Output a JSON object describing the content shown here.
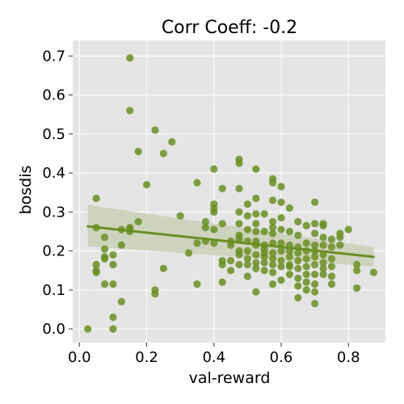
{
  "chart_data": {
    "type": "scatter",
    "title": "Corr Coeff: -0.2",
    "xlabel": "val-reward",
    "ylabel": "bosdis",
    "xlim": [
      -0.02,
      0.91
    ],
    "ylim": [
      -0.035,
      0.74
    ],
    "xticks": [
      0.0,
      0.2,
      0.4,
      0.6,
      0.8
    ],
    "yticks": [
      0.0,
      0.1,
      0.2,
      0.3,
      0.4,
      0.5,
      0.6,
      0.7
    ],
    "xtick_labels": [
      "0.0",
      "0.2",
      "0.4",
      "0.6",
      "0.8"
    ],
    "ytick_labels": [
      "0.0",
      "0.1",
      "0.2",
      "0.3",
      "0.4",
      "0.5",
      "0.6",
      "0.7"
    ],
    "grid": true,
    "colors": {
      "points": "#6b8e23",
      "regression_line": "#6b8e23",
      "confidence_band": "#c5ccb0",
      "plot_background": "#e5e5e5",
      "grid": "#ffffff"
    },
    "regression": {
      "x": [
        0.025,
        0.875
      ],
      "y": [
        0.263,
        0.185
      ],
      "ci_upper": [
        0.318,
        0.21
      ],
      "ci_lower": [
        0.212,
        0.16
      ]
    },
    "points": [
      {
        "x": 0.025,
        "y": 0.0
      },
      {
        "x": 0.05,
        "y": 0.335
      },
      {
        "x": 0.05,
        "y": 0.26
      },
      {
        "x": 0.05,
        "y": 0.165
      },
      {
        "x": 0.05,
        "y": 0.15
      },
      {
        "x": 0.05,
        "y": 0.145
      },
      {
        "x": 0.075,
        "y": 0.235
      },
      {
        "x": 0.075,
        "y": 0.205
      },
      {
        "x": 0.075,
        "y": 0.185
      },
      {
        "x": 0.075,
        "y": 0.18
      },
      {
        "x": 0.075,
        "y": 0.115
      },
      {
        "x": 0.1,
        "y": 0.19
      },
      {
        "x": 0.1,
        "y": 0.165
      },
      {
        "x": 0.1,
        "y": 0.115
      },
      {
        "x": 0.1,
        "y": 0.03
      },
      {
        "x": 0.1,
        "y": 0.0
      },
      {
        "x": 0.125,
        "y": 0.255
      },
      {
        "x": 0.125,
        "y": 0.215
      },
      {
        "x": 0.125,
        "y": 0.07
      },
      {
        "x": 0.15,
        "y": 0.695
      },
      {
        "x": 0.15,
        "y": 0.56
      },
      {
        "x": 0.15,
        "y": 0.26
      },
      {
        "x": 0.15,
        "y": 0.255
      },
      {
        "x": 0.15,
        "y": 0.25
      },
      {
        "x": 0.175,
        "y": 0.455
      },
      {
        "x": 0.175,
        "y": 0.275
      },
      {
        "x": 0.2,
        "y": 0.37
      },
      {
        "x": 0.225,
        "y": 0.51
      },
      {
        "x": 0.225,
        "y": 0.1
      },
      {
        "x": 0.225,
        "y": 0.09
      },
      {
        "x": 0.25,
        "y": 0.45
      },
      {
        "x": 0.25,
        "y": 0.155
      },
      {
        "x": 0.275,
        "y": 0.48
      },
      {
        "x": 0.3,
        "y": 0.29
      },
      {
        "x": 0.325,
        "y": 0.195
      },
      {
        "x": 0.35,
        "y": 0.375
      },
      {
        "x": 0.35,
        "y": 0.22
      },
      {
        "x": 0.35,
        "y": 0.115
      },
      {
        "x": 0.375,
        "y": 0.275
      },
      {
        "x": 0.375,
        "y": 0.26
      },
      {
        "x": 0.375,
        "y": 0.225
      },
      {
        "x": 0.4,
        "y": 0.41
      },
      {
        "x": 0.4,
        "y": 0.32
      },
      {
        "x": 0.4,
        "y": 0.31
      },
      {
        "x": 0.4,
        "y": 0.3
      },
      {
        "x": 0.4,
        "y": 0.255
      },
      {
        "x": 0.4,
        "y": 0.22
      },
      {
        "x": 0.425,
        "y": 0.36
      },
      {
        "x": 0.425,
        "y": 0.27
      },
      {
        "x": 0.425,
        "y": 0.175
      },
      {
        "x": 0.425,
        "y": 0.165
      },
      {
        "x": 0.425,
        "y": 0.12
      },
      {
        "x": 0.45,
        "y": 0.225
      },
      {
        "x": 0.45,
        "y": 0.215
      },
      {
        "x": 0.45,
        "y": 0.175
      },
      {
        "x": 0.45,
        "y": 0.15
      },
      {
        "x": 0.475,
        "y": 0.435
      },
      {
        "x": 0.475,
        "y": 0.425
      },
      {
        "x": 0.475,
        "y": 0.36
      },
      {
        "x": 0.475,
        "y": 0.3
      },
      {
        "x": 0.475,
        "y": 0.27
      },
      {
        "x": 0.475,
        "y": 0.24
      },
      {
        "x": 0.475,
        "y": 0.23
      },
      {
        "x": 0.475,
        "y": 0.2
      },
      {
        "x": 0.475,
        "y": 0.19
      },
      {
        "x": 0.475,
        "y": 0.165
      },
      {
        "x": 0.5,
        "y": 0.32
      },
      {
        "x": 0.5,
        "y": 0.29
      },
      {
        "x": 0.5,
        "y": 0.255
      },
      {
        "x": 0.5,
        "y": 0.225
      },
      {
        "x": 0.5,
        "y": 0.2
      },
      {
        "x": 0.5,
        "y": 0.18
      },
      {
        "x": 0.5,
        "y": 0.165
      },
      {
        "x": 0.5,
        "y": 0.135
      },
      {
        "x": 0.525,
        "y": 0.41
      },
      {
        "x": 0.525,
        "y": 0.335
      },
      {
        "x": 0.525,
        "y": 0.295
      },
      {
        "x": 0.525,
        "y": 0.27
      },
      {
        "x": 0.525,
        "y": 0.25
      },
      {
        "x": 0.525,
        "y": 0.225
      },
      {
        "x": 0.525,
        "y": 0.215
      },
      {
        "x": 0.525,
        "y": 0.19
      },
      {
        "x": 0.525,
        "y": 0.17
      },
      {
        "x": 0.525,
        "y": 0.155
      },
      {
        "x": 0.525,
        "y": 0.095
      },
      {
        "x": 0.55,
        "y": 0.295
      },
      {
        "x": 0.55,
        "y": 0.25
      },
      {
        "x": 0.55,
        "y": 0.215
      },
      {
        "x": 0.55,
        "y": 0.205
      },
      {
        "x": 0.55,
        "y": 0.195
      },
      {
        "x": 0.55,
        "y": 0.185
      },
      {
        "x": 0.55,
        "y": 0.17
      },
      {
        "x": 0.55,
        "y": 0.15
      },
      {
        "x": 0.575,
        "y": 0.385
      },
      {
        "x": 0.575,
        "y": 0.375
      },
      {
        "x": 0.575,
        "y": 0.33
      },
      {
        "x": 0.575,
        "y": 0.275
      },
      {
        "x": 0.575,
        "y": 0.26
      },
      {
        "x": 0.575,
        "y": 0.245
      },
      {
        "x": 0.575,
        "y": 0.22
      },
      {
        "x": 0.575,
        "y": 0.195
      },
      {
        "x": 0.575,
        "y": 0.18
      },
      {
        "x": 0.575,
        "y": 0.165
      },
      {
        "x": 0.575,
        "y": 0.145
      },
      {
        "x": 0.575,
        "y": 0.115
      },
      {
        "x": 0.6,
        "y": 0.365
      },
      {
        "x": 0.6,
        "y": 0.325
      },
      {
        "x": 0.6,
        "y": 0.285
      },
      {
        "x": 0.6,
        "y": 0.255
      },
      {
        "x": 0.6,
        "y": 0.22
      },
      {
        "x": 0.6,
        "y": 0.2
      },
      {
        "x": 0.6,
        "y": 0.175
      },
      {
        "x": 0.6,
        "y": 0.16
      },
      {
        "x": 0.6,
        "y": 0.125
      },
      {
        "x": 0.625,
        "y": 0.31
      },
      {
        "x": 0.625,
        "y": 0.25
      },
      {
        "x": 0.625,
        "y": 0.215
      },
      {
        "x": 0.625,
        "y": 0.2
      },
      {
        "x": 0.625,
        "y": 0.185
      },
      {
        "x": 0.625,
        "y": 0.165
      },
      {
        "x": 0.625,
        "y": 0.16
      },
      {
        "x": 0.625,
        "y": 0.14
      },
      {
        "x": 0.65,
        "y": 0.275
      },
      {
        "x": 0.65,
        "y": 0.24
      },
      {
        "x": 0.65,
        "y": 0.21
      },
      {
        "x": 0.65,
        "y": 0.195
      },
      {
        "x": 0.65,
        "y": 0.175
      },
      {
        "x": 0.65,
        "y": 0.155
      },
      {
        "x": 0.65,
        "y": 0.13
      },
      {
        "x": 0.65,
        "y": 0.11
      },
      {
        "x": 0.65,
        "y": 0.08
      },
      {
        "x": 0.675,
        "y": 0.265
      },
      {
        "x": 0.675,
        "y": 0.22
      },
      {
        "x": 0.675,
        "y": 0.2
      },
      {
        "x": 0.675,
        "y": 0.18
      },
      {
        "x": 0.675,
        "y": 0.16
      },
      {
        "x": 0.675,
        "y": 0.14
      },
      {
        "x": 0.675,
        "y": 0.12
      },
      {
        "x": 0.675,
        "y": 0.1
      },
      {
        "x": 0.7,
        "y": 0.325
      },
      {
        "x": 0.7,
        "y": 0.27
      },
      {
        "x": 0.7,
        "y": 0.245
      },
      {
        "x": 0.7,
        "y": 0.215
      },
      {
        "x": 0.7,
        "y": 0.2
      },
      {
        "x": 0.7,
        "y": 0.185
      },
      {
        "x": 0.7,
        "y": 0.165
      },
      {
        "x": 0.7,
        "y": 0.14
      },
      {
        "x": 0.7,
        "y": 0.115
      },
      {
        "x": 0.7,
        "y": 0.095
      },
      {
        "x": 0.7,
        "y": 0.065
      },
      {
        "x": 0.725,
        "y": 0.27
      },
      {
        "x": 0.725,
        "y": 0.265
      },
      {
        "x": 0.725,
        "y": 0.235
      },
      {
        "x": 0.725,
        "y": 0.215
      },
      {
        "x": 0.725,
        "y": 0.19
      },
      {
        "x": 0.725,
        "y": 0.17
      },
      {
        "x": 0.725,
        "y": 0.155
      },
      {
        "x": 0.725,
        "y": 0.14
      },
      {
        "x": 0.75,
        "y": 0.23
      },
      {
        "x": 0.75,
        "y": 0.21
      },
      {
        "x": 0.75,
        "y": 0.18
      },
      {
        "x": 0.75,
        "y": 0.16
      },
      {
        "x": 0.75,
        "y": 0.135
      },
      {
        "x": 0.75,
        "y": 0.115
      },
      {
        "x": 0.775,
        "y": 0.245
      },
      {
        "x": 0.775,
        "y": 0.235
      },
      {
        "x": 0.775,
        "y": 0.215
      },
      {
        "x": 0.8,
        "y": 0.255
      },
      {
        "x": 0.825,
        "y": 0.165
      },
      {
        "x": 0.825,
        "y": 0.15
      },
      {
        "x": 0.825,
        "y": 0.105
      },
      {
        "x": 0.875,
        "y": 0.145
      }
    ]
  }
}
